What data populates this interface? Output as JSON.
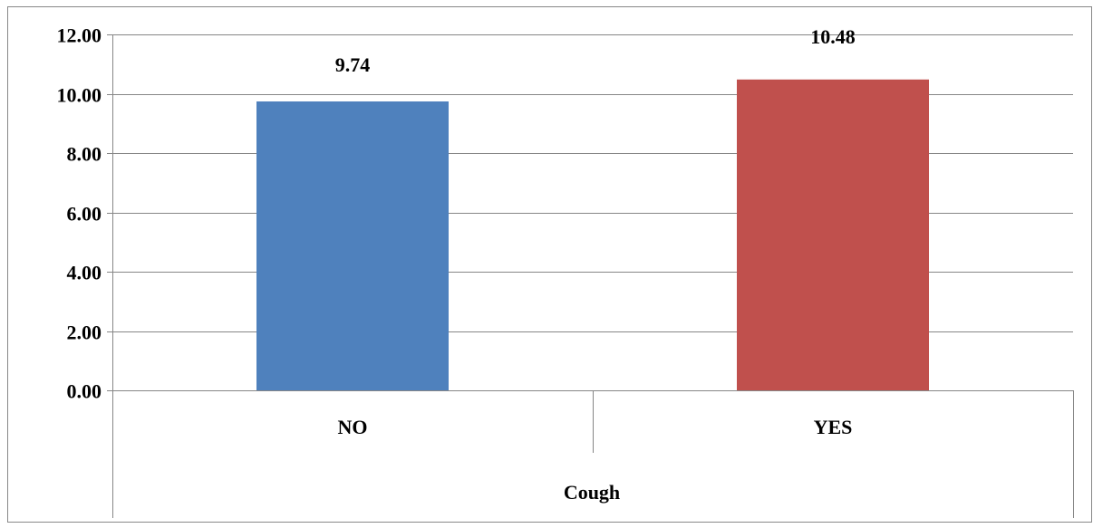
{
  "chart_data": {
    "type": "bar",
    "categories": [
      "NO",
      "YES"
    ],
    "values": [
      9.74,
      10.48
    ],
    "data_labels": [
      "9.74",
      "10.48"
    ],
    "bar_colors": [
      "#4f81bd",
      "#c0504d"
    ],
    "group_label": "Cough",
    "title": "",
    "xlabel": "",
    "ylabel": "",
    "ylim": [
      0,
      12
    ],
    "yticks": [
      0,
      2,
      4,
      6,
      8,
      10,
      12
    ],
    "ytick_labels": [
      "0.00",
      "2.00",
      "4.00",
      "6.00",
      "8.00",
      "10.00",
      "12.00"
    ],
    "grid": true,
    "legend": "none"
  }
}
